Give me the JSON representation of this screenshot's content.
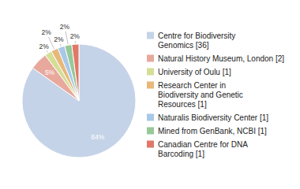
{
  "chart_data": {
    "type": "pie",
    "categories": [
      "Centre for Biodiversity\nGenomics [36]",
      "Natural History Museum, London [2]",
      "University of Oulu [1]",
      "Research Center in\nBiodiversity and Genetic\nResources [1]",
      "Naturalis Biodiversity Center [1]",
      "Mined from GenBank, NCBI [1]",
      "Canadian Centre for DNA\nBarcoding [1]"
    ],
    "values": [
      84,
      5,
      2,
      2,
      2,
      2,
      2
    ],
    "value_labels": [
      "84%",
      "5%",
      "2%",
      "2%",
      "2%",
      "2%",
      "2%"
    ],
    "colors": [
      "#c5d3e8",
      "#e8a89c",
      "#d4de96",
      "#e8b87a",
      "#a8c8e8",
      "#98c898",
      "#e07868"
    ],
    "data_labels": true,
    "legend": "right"
  }
}
